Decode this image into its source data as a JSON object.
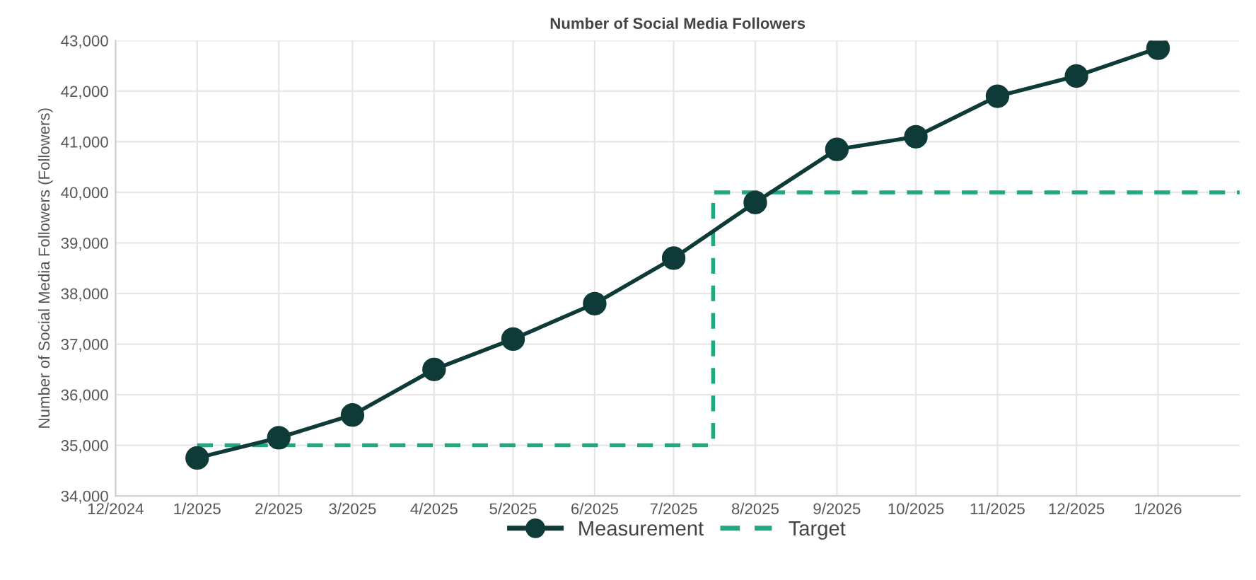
{
  "chart_data": {
    "type": "line",
    "title": "Number of Social Media Followers",
    "ylabel": "Number of Social Media Followers (Followers)",
    "series": [
      {
        "name": "Measurement",
        "color": "#0e3b38",
        "marker": "circle",
        "line_style": "solid",
        "x": [
          "2025-01-01",
          "2025-02-01",
          "2025-03-01",
          "2025-04-01",
          "2025-05-01",
          "2025-06-01",
          "2025-07-01",
          "2025-08-01",
          "2025-09-01",
          "2025-10-01",
          "2025-11-01",
          "2025-12-01",
          "2026-01-01"
        ],
        "values": [
          34750,
          35150,
          35600,
          36500,
          37100,
          37800,
          38700,
          39800,
          40850,
          41100,
          41900,
          42300,
          42850
        ]
      },
      {
        "name": "Target",
        "type": "step",
        "color": "#1fa882",
        "marker": "none",
        "line_style": "dashed",
        "x": [
          "2025-01-01",
          "2025-07-16",
          "2026-02-01"
        ],
        "values": [
          35000,
          40000,
          40000
        ]
      }
    ],
    "xlim": [
      "2024-12-01",
      "2026-02-01"
    ],
    "xticks": [
      {
        "value": "2024-12-01",
        "label": "12/2024"
      },
      {
        "value": "2025-01-01",
        "label": "1/2025"
      },
      {
        "value": "2025-02-01",
        "label": "2/2025"
      },
      {
        "value": "2025-03-01",
        "label": "3/2025"
      },
      {
        "value": "2025-04-01",
        "label": "4/2025"
      },
      {
        "value": "2025-05-01",
        "label": "5/2025"
      },
      {
        "value": "2025-06-01",
        "label": "6/2025"
      },
      {
        "value": "2025-07-01",
        "label": "7/2025"
      },
      {
        "value": "2025-08-01",
        "label": "8/2025"
      },
      {
        "value": "2025-09-01",
        "label": "9/2025"
      },
      {
        "value": "2025-10-01",
        "label": "10/2025"
      },
      {
        "value": "2025-11-01",
        "label": "11/2025"
      },
      {
        "value": "2025-12-01",
        "label": "12/2025"
      },
      {
        "value": "2026-01-01",
        "label": "1/2026"
      }
    ],
    "ylim": [
      34000,
      43000
    ],
    "yticks": [
      {
        "value": 34000,
        "label": "34,000"
      },
      {
        "value": 35000,
        "label": "35,000"
      },
      {
        "value": 36000,
        "label": "36,000"
      },
      {
        "value": 37000,
        "label": "37,000"
      },
      {
        "value": 38000,
        "label": "38,000"
      },
      {
        "value": 39000,
        "label": "39,000"
      },
      {
        "value": 40000,
        "label": "40,000"
      },
      {
        "value": 41000,
        "label": "41,000"
      },
      {
        "value": 42000,
        "label": "42,000"
      },
      {
        "value": 43000,
        "label": "43,000"
      }
    ],
    "grid": true,
    "legend": "bottom"
  }
}
